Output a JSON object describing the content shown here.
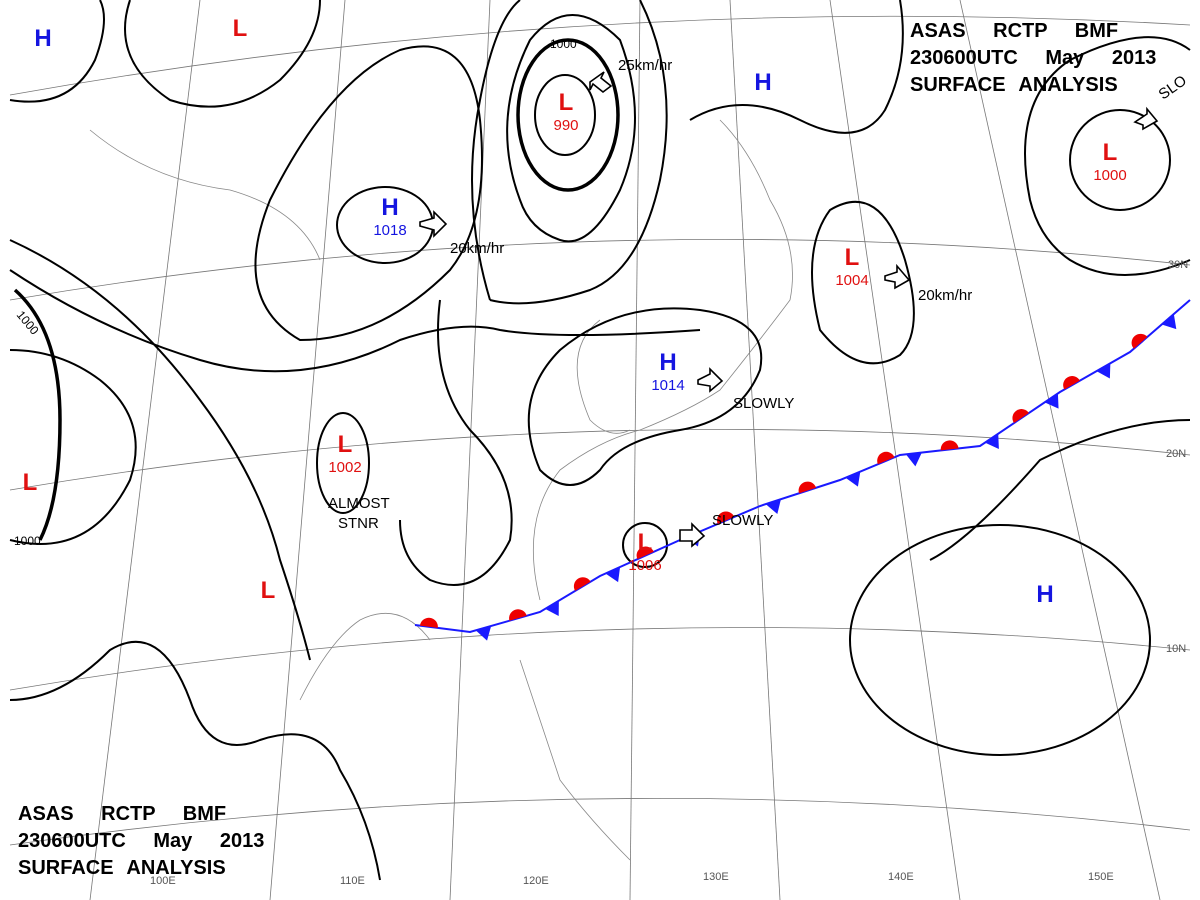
{
  "header": {
    "line1": "ASAS RCTP BMF",
    "line2": "230600UTC May 2013",
    "line3": "SURFACE ANALYSIS"
  },
  "centers": [
    {
      "symbol": "H"
    },
    {
      "symbol": "L"
    },
    {
      "symbol": "L",
      "pressure": 990
    },
    {
      "symbol": "H",
      "pressure": 1018
    },
    {
      "symbol": "H"
    },
    {
      "symbol": "L",
      "pressure": 1000
    },
    {
      "symbol": "L",
      "pressure": 1004
    },
    {
      "symbol": "H",
      "pressure": 1014
    },
    {
      "symbol": "L",
      "pressure": 1002
    },
    {
      "symbol": "L"
    },
    {
      "symbol": "L",
      "pressure": 1006
    },
    {
      "symbol": "L"
    },
    {
      "symbol": "H"
    }
  ],
  "motions": [
    "25km/hr",
    "20km/hr",
    "20km/hr",
    "SLOWLY",
    "SLOWLY",
    "ALMOST",
    "STNR",
    "SLO"
  ],
  "isobar_labels": [
    "1000",
    "1000",
    "1000"
  ],
  "latitudes": [
    "30N",
    "20N",
    "10N"
  ],
  "longitudes": [
    "100E",
    "110E",
    "120E",
    "130E",
    "140E",
    "150E"
  ]
}
